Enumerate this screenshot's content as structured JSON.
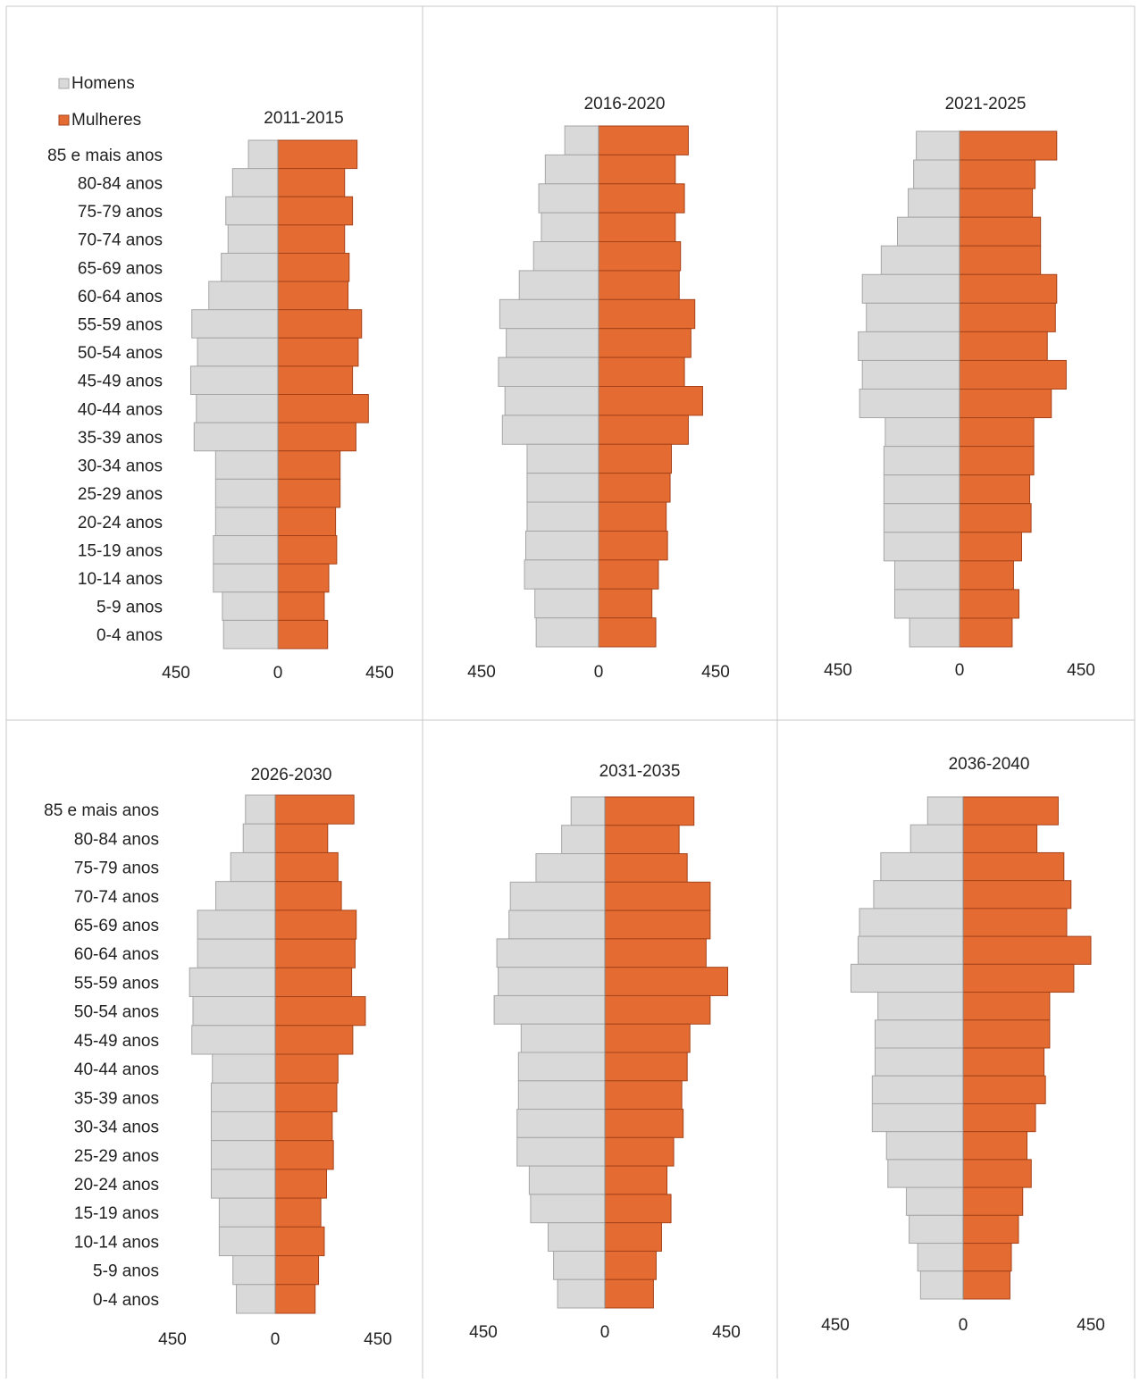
{
  "legend": [
    {
      "label": "Homens",
      "color": "#d9d9d9"
    },
    {
      "label": "Mulheres",
      "color": "#e46c32"
    }
  ],
  "colors": {
    "men_fill": "#d9d9d9",
    "men_stroke": "#a6a6a6",
    "women_fill": "#e46c32",
    "women_stroke": "#a5421a",
    "grid": "#c8c8c8"
  },
  "chart_data": [
    {
      "type": "bar",
      "title": "2011-2015",
      "categories": [
        "85 e mais anos",
        "80-84 anos",
        "75-79 anos",
        "70-74 anos",
        "65-69 anos",
        "60-64 anos",
        "55-59 anos",
        "50-54 anos",
        "45-49 anos",
        "40-44 anos",
        "35-39 anos",
        "30-34 anos",
        "25-29 anos",
        "20-24 anos",
        "15-19 anos",
        "10-14 anos",
        "5-9 anos",
        "0-4 anos"
      ],
      "series": [
        {
          "name": "Homens",
          "values": [
            -130,
            -200,
            -230,
            -220,
            -250,
            -305,
            -380,
            -355,
            -385,
            -360,
            -370,
            -275,
            -275,
            -275,
            -285,
            -285,
            -245,
            -240
          ]
        },
        {
          "name": "Mulheres",
          "values": [
            350,
            295,
            330,
            295,
            315,
            310,
            370,
            355,
            330,
            400,
            345,
            275,
            275,
            255,
            260,
            225,
            205,
            220
          ]
        }
      ],
      "xlim": [
        -450,
        450
      ],
      "x_tick_labels": [
        "450",
        "0",
        "450"
      ]
    },
    {
      "type": "bar",
      "title": "2016-2020",
      "categories": [
        "85 e mais anos",
        "80-84 anos",
        "75-79 anos",
        "70-74 anos",
        "65-69 anos",
        "60-64 anos",
        "55-59 anos",
        "50-54 anos",
        "45-49 anos",
        "40-44 anos",
        "35-39 anos",
        "30-34 anos",
        "25-29 anos",
        "20-24 anos",
        "15-19 anos",
        "10-14 anos",
        "5-9 anos",
        "0-4 anos"
      ],
      "series": [
        {
          "name": "Homens",
          "values": [
            -130,
            -205,
            -230,
            -220,
            -250,
            -305,
            -380,
            -355,
            -385,
            -360,
            -370,
            -275,
            -275,
            -275,
            -280,
            -285,
            -245,
            -240
          ]
        },
        {
          "name": "Mulheres",
          "values": [
            345,
            295,
            330,
            295,
            315,
            310,
            370,
            355,
            330,
            400,
            345,
            280,
            275,
            260,
            265,
            230,
            205,
            220
          ]
        }
      ],
      "xlim": [
        -450,
        450
      ],
      "x_tick_labels": [
        "450",
        "0",
        "450"
      ]
    },
    {
      "type": "bar",
      "title": "2021-2025",
      "categories": [
        "85 e mais anos",
        "80-84 anos",
        "75-79 anos",
        "70-74 anos",
        "65-69 anos",
        "60-64 anos",
        "55-59 anos",
        "50-54 anos",
        "45-49 anos",
        "40-44 anos",
        "35-39 anos",
        "30-34 anos",
        "25-29 anos",
        "20-24 anos",
        "15-19 anos",
        "10-14 anos",
        "5-9 anos",
        "0-4 anos"
      ],
      "series": [
        {
          "name": "Homens",
          "values": [
            -160,
            -170,
            -190,
            -230,
            -290,
            -360,
            -345,
            -375,
            -360,
            -370,
            -275,
            -280,
            -280,
            -280,
            -280,
            -240,
            -240,
            -185
          ]
        },
        {
          "name": "Mulheres",
          "values": [
            360,
            280,
            270,
            300,
            300,
            360,
            355,
            325,
            395,
            340,
            275,
            275,
            260,
            265,
            230,
            200,
            220,
            195
          ]
        }
      ],
      "xlim": [
        -450,
        450
      ],
      "x_tick_labels": [
        "450",
        "0",
        "450"
      ]
    },
    {
      "type": "bar",
      "title": "2026-2030",
      "categories": [
        "85 e mais anos",
        "80-84 anos",
        "75-79 anos",
        "70-74 anos",
        "65-69 anos",
        "60-64 anos",
        "55-59 anos",
        "50-54 anos",
        "45-49 anos",
        "40-44 anos",
        "35-39 anos",
        "30-34 anos",
        "25-29 anos",
        "20-24 anos",
        "15-19 anos",
        "10-14 anos",
        "5-9 anos",
        "0-4 anos"
      ],
      "series": [
        {
          "name": "Homens",
          "values": [
            -130,
            -140,
            -195,
            -260,
            -340,
            -340,
            -375,
            -360,
            -365,
            -275,
            -280,
            -280,
            -280,
            -280,
            -245,
            -245,
            -185,
            -170
          ]
        },
        {
          "name": "Mulheres",
          "values": [
            345,
            230,
            275,
            290,
            355,
            350,
            335,
            395,
            340,
            275,
            270,
            250,
            255,
            225,
            200,
            215,
            190,
            175
          ]
        }
      ],
      "xlim": [
        -450,
        450
      ],
      "x_tick_labels": [
        "450",
        "0",
        "450"
      ]
    },
    {
      "type": "bar",
      "title": "2031-2035",
      "categories": [
        "85 e mais anos",
        "80-84 anos",
        "75-79 anos",
        "70-74 anos",
        "65-69 anos",
        "60-64 anos",
        "55-59 anos",
        "50-54 anos",
        "45-49 anos",
        "40-44 anos",
        "35-39 anos",
        "30-34 anos",
        "25-29 anos",
        "20-24 anos",
        "15-19 anos",
        "10-14 anos",
        "5-9 anos",
        "0-4 anos"
      ],
      "series": [
        {
          "name": "Homens",
          "values": [
            -125,
            -160,
            -255,
            -350,
            -355,
            -400,
            -395,
            -410,
            -310,
            -320,
            -320,
            -325,
            -325,
            -280,
            -275,
            -210,
            -190,
            -175
          ]
        },
        {
          "name": "Mulheres",
          "values": [
            330,
            275,
            305,
            390,
            390,
            375,
            455,
            390,
            315,
            305,
            285,
            290,
            255,
            230,
            245,
            210,
            190,
            180
          ]
        }
      ],
      "xlim": [
        -450,
        450
      ],
      "x_tick_labels": [
        "450",
        "0",
        "450"
      ]
    },
    {
      "type": "bar",
      "title": "2036-2040",
      "categories": [
        "85 e mais anos",
        "80-84 anos",
        "75-79 anos",
        "70-74 anos",
        "65-69 anos",
        "60-64 anos",
        "55-59 anos",
        "50-54 anos",
        "45-49 anos",
        "40-44 anos",
        "35-39 anos",
        "30-34 anos",
        "25-29 anos",
        "20-24 anos",
        "15-19 anos",
        "10-14 anos",
        "5-9 anos",
        "0-4 anos"
      ],
      "series": [
        {
          "name": "Homens",
          "values": [
            -125,
            -185,
            -290,
            -315,
            -365,
            -370,
            -395,
            -300,
            -310,
            -310,
            -320,
            -320,
            -270,
            -265,
            -200,
            -190,
            -160,
            -150
          ]
        },
        {
          "name": "Mulheres",
          "values": [
            335,
            260,
            355,
            380,
            365,
            450,
            390,
            305,
            305,
            285,
            290,
            255,
            225,
            240,
            210,
            195,
            170,
            165
          ]
        }
      ],
      "xlim": [
        -450,
        450
      ],
      "x_tick_labels": [
        "450",
        "0",
        "450"
      ]
    }
  ]
}
